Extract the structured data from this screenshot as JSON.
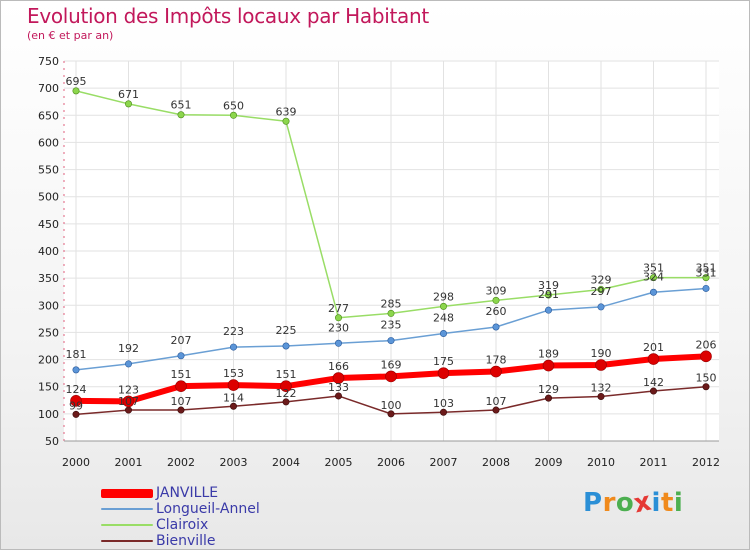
{
  "chart_data": {
    "type": "line",
    "title": "Evolution des Impôts locaux par Habitant",
    "subtitle": "(en € et par an)",
    "xlabel": "",
    "ylabel": "",
    "ylim": [
      50,
      750
    ],
    "y_ticks": [
      50,
      100,
      150,
      200,
      250,
      300,
      350,
      400,
      450,
      500,
      550,
      600,
      650,
      700,
      750
    ],
    "categories": [
      "2000",
      "2001",
      "2002",
      "2003",
      "2004",
      "2005",
      "2006",
      "2007",
      "2008",
      "2009",
      "2010",
      "2011",
      "2012"
    ],
    "grid": true,
    "legend_position": "bottom-left",
    "series": [
      {
        "name": "JANVILLE",
        "color": "#ff0000",
        "values": [
          124,
          123,
          151,
          153,
          151,
          166,
          169,
          175,
          178,
          189,
          190,
          201,
          206
        ]
      },
      {
        "name": "Longueil-Annel",
        "color": "#6a9fd4",
        "values": [
          181,
          192,
          207,
          223,
          225,
          230,
          235,
          248,
          260,
          291,
          297,
          324,
          331
        ]
      },
      {
        "name": "Clairoix",
        "color": "#99dd66",
        "values": [
          695,
          671,
          651,
          650,
          639,
          277,
          285,
          298,
          309,
          319,
          329,
          351,
          351
        ]
      },
      {
        "name": "Bienville",
        "color": "#7a2a2a",
        "values": [
          99,
          107,
          107,
          114,
          122,
          133,
          100,
          103,
          107,
          129,
          132,
          142,
          150
        ]
      }
    ]
  },
  "logo": {
    "letters": [
      "P",
      "r",
      "o",
      "x",
      "i",
      "t",
      "i"
    ],
    "colors": [
      "#2b8fd6",
      "#f08a1c",
      "#4caf50",
      "#e53935",
      "#2b8fd6",
      "#f08a1c",
      "#4caf50"
    ]
  }
}
